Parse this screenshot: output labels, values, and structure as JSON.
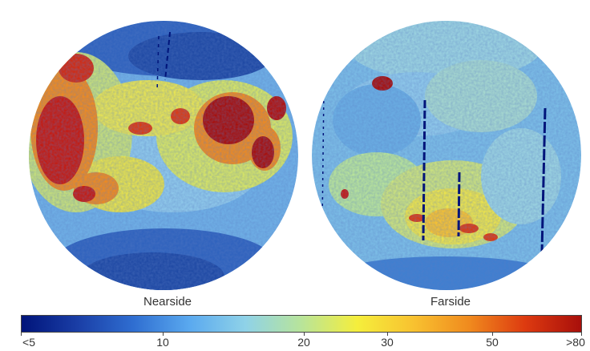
{
  "hemispheres": [
    {
      "key": "near",
      "label": "Nearside"
    },
    {
      "key": "far",
      "label": "Farside"
    }
  ],
  "colorbar": {
    "ticks": [
      "<5",
      "10",
      "20",
      "30",
      "50",
      ">80"
    ],
    "colors": [
      "#00147a",
      "#1a3ea6",
      "#2f6ed1",
      "#5aa9ef",
      "#8fd2e8",
      "#b8e49a",
      "#f5ee3c",
      "#f8c230",
      "#f08a1e",
      "#dd3a10",
      "#a80f0b"
    ]
  }
}
